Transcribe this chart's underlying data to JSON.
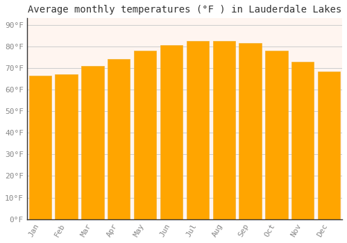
{
  "title": "Average monthly temperatures (°F ) in Lauderdale Lakes",
  "months": [
    "Jan",
    "Feb",
    "Mar",
    "Apr",
    "May",
    "Jun",
    "Jul",
    "Aug",
    "Sep",
    "Oct",
    "Nov",
    "Dec"
  ],
  "values": [
    66.5,
    67.0,
    71.0,
    74.0,
    78.0,
    80.5,
    82.5,
    82.5,
    81.5,
    78.0,
    73.0,
    68.5
  ],
  "bar_color": "#FFA500",
  "bar_edge_color": "#F0B030",
  "background_color": "#FFFFFF",
  "plot_bg_color": "#FFF5F0",
  "grid_color": "#CCCCCC",
  "ylabel_ticks": [
    "0°F",
    "10°F",
    "20°F",
    "30°F",
    "40°F",
    "50°F",
    "60°F",
    "70°F",
    "80°F",
    "90°F"
  ],
  "ytick_values": [
    0,
    10,
    20,
    30,
    40,
    50,
    60,
    70,
    80,
    90
  ],
  "ylim": [
    0,
    93
  ],
  "title_fontsize": 10,
  "tick_fontsize": 8,
  "tick_color": "#888888",
  "font_family": "monospace",
  "bar_width": 0.85
}
